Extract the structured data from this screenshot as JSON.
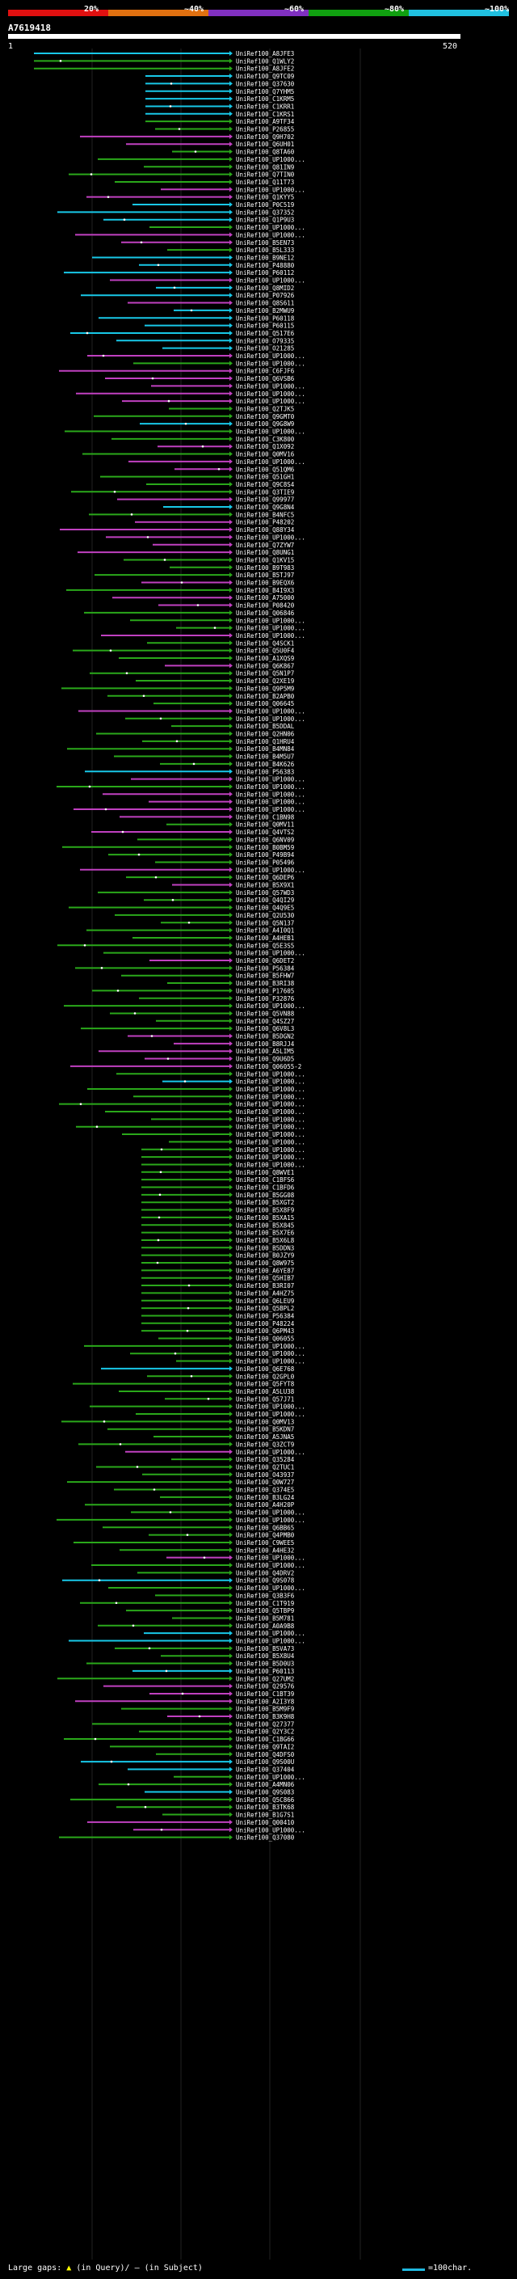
{
  "legend": {
    "labels": [
      "20%",
      "~40%",
      "~60%",
      "~80%",
      "~100%"
    ],
    "colors": [
      "#e01010",
      "#e07010",
      "#8030c0",
      "#10a010",
      "#20c0e0"
    ]
  },
  "query": {
    "id": "A7619418",
    "start": "1",
    "end": "520"
  },
  "colors": {
    "cyan": "#18c8e8",
    "green": "#2aa81a",
    "magenta": "#c040c0",
    "white": "#ffffff"
  },
  "hits": [
    {
      "id": "UniRef100_A8JFE3",
      "c": "cyan"
    },
    {
      "id": "UniRef100_Q1WLY2",
      "c": "green"
    },
    {
      "id": "UniRef100_A8JFE2",
      "c": "green"
    },
    {
      "id": "UniRef100_Q9TC09",
      "c": "cyan"
    },
    {
      "id": "UniRef100_Q37630",
      "c": "cyan"
    },
    {
      "id": "UniRef100_Q7YHM5",
      "c": "cyan"
    },
    {
      "id": "UniRef100_C1KRM5",
      "c": "cyan"
    },
    {
      "id": "UniRef100_C1KRR1",
      "c": "cyan"
    },
    {
      "id": "UniRef100_C1KRS1",
      "c": "cyan"
    },
    {
      "id": "UniRef100_A9TF34",
      "c": "green"
    },
    {
      "id": "UniRef100_P26855",
      "c": "green"
    },
    {
      "id": "UniRef100_Q9H702",
      "c": "magenta"
    },
    {
      "id": "UniRef100_Q6UH01",
      "c": "magenta"
    },
    {
      "id": "UniRef100_Q8TA60",
      "c": "green"
    },
    {
      "id": "UniRef100_UP1000...",
      "c": "green"
    },
    {
      "id": "UniRef100_Q81IN9",
      "c": "green"
    },
    {
      "id": "UniRef100_Q7TIN0",
      "c": "green"
    },
    {
      "id": "UniRef100_Q11T73",
      "c": "green"
    },
    {
      "id": "UniRef100_UP1000...",
      "c": "magenta"
    },
    {
      "id": "UniRef100_Q1KYY5",
      "c": "magenta"
    },
    {
      "id": "UniRef100_P0C519",
      "c": "cyan"
    },
    {
      "id": "UniRef100_Q37352",
      "c": "cyan"
    },
    {
      "id": "UniRef100_Q1P9U3",
      "c": "cyan"
    },
    {
      "id": "UniRef100_UP1000...",
      "c": "green"
    },
    {
      "id": "UniRef100_UP1000...",
      "c": "magenta"
    },
    {
      "id": "UniRef100_B5EN73",
      "c": "magenta"
    },
    {
      "id": "UniRef100_B5L333",
      "c": "green"
    },
    {
      "id": "UniRef100_B9NE12",
      "c": "cyan"
    },
    {
      "id": "UniRef100_P48880",
      "c": "cyan"
    },
    {
      "id": "UniRef100_P60112",
      "c": "cyan"
    },
    {
      "id": "UniRef100_UP1000...",
      "c": "magenta"
    },
    {
      "id": "UniRef100_Q8MID2",
      "c": "cyan"
    },
    {
      "id": "UniRef100_P07926",
      "c": "cyan"
    },
    {
      "id": "UniRef100_Q8S611",
      "c": "magenta"
    },
    {
      "id": "UniRef100_B2MWU9",
      "c": "cyan"
    },
    {
      "id": "UniRef100_P60118",
      "c": "cyan"
    },
    {
      "id": "UniRef100_P60115",
      "c": "cyan"
    },
    {
      "id": "UniRef100_Q517E6",
      "c": "cyan"
    },
    {
      "id": "UniRef100_O79335",
      "c": "cyan"
    },
    {
      "id": "UniRef100_O21285",
      "c": "cyan"
    },
    {
      "id": "UniRef100_UP1000...",
      "c": "magenta"
    },
    {
      "id": "UniRef100_UP1000...",
      "c": "green"
    },
    {
      "id": "UniRef100_C6FJF6",
      "c": "magenta"
    },
    {
      "id": "UniRef100_Q6VSB6",
      "c": "magenta"
    },
    {
      "id": "UniRef100_UP1000...",
      "c": "magenta"
    },
    {
      "id": "UniRef100_UP1000...",
      "c": "magenta"
    },
    {
      "id": "UniRef100_UP1000...",
      "c": "magenta"
    },
    {
      "id": "UniRef100_Q2TJK5",
      "c": "green"
    },
    {
      "id": "UniRef100_Q9GMT0",
      "c": "green"
    },
    {
      "id": "UniRef100_Q9G8W9",
      "c": "cyan"
    },
    {
      "id": "UniRef100_UP1000...",
      "c": "green"
    },
    {
      "id": "UniRef100_C3K800",
      "c": "green"
    },
    {
      "id": "UniRef100_Q1X092",
      "c": "magenta"
    },
    {
      "id": "UniRef100_Q0MV16",
      "c": "green"
    },
    {
      "id": "UniRef100_UP1000...",
      "c": "magenta"
    },
    {
      "id": "UniRef100_Q51QM6",
      "c": "magenta"
    },
    {
      "id": "UniRef100_Q51GH1",
      "c": "green"
    },
    {
      "id": "UniRef100_Q9C8S4",
      "c": "green"
    },
    {
      "id": "UniRef100_Q3TIE9",
      "c": "green"
    },
    {
      "id": "UniRef100_Q99977",
      "c": "magenta"
    },
    {
      "id": "UniRef100_Q9G8N4",
      "c": "cyan"
    },
    {
      "id": "UniRef100_B4NFC5",
      "c": "green"
    },
    {
      "id": "UniRef100_P48202",
      "c": "magenta"
    },
    {
      "id": "UniRef100_Q88Y34",
      "c": "magenta"
    },
    {
      "id": "UniRef100_UP1000...",
      "c": "magenta"
    },
    {
      "id": "UniRef100_Q7ZYW7",
      "c": "magenta"
    },
    {
      "id": "UniRef100_Q8UNG1",
      "c": "magenta"
    },
    {
      "id": "UniRef100_Q1KV15",
      "c": "green"
    },
    {
      "id": "UniRef100_B9T983",
      "c": "green"
    },
    {
      "id": "UniRef100_B5TJ97",
      "c": "green"
    },
    {
      "id": "UniRef100_B9EQX6",
      "c": "magenta"
    },
    {
      "id": "UniRef100_B4I9X3",
      "c": "green"
    },
    {
      "id": "UniRef100_A75000",
      "c": "magenta"
    },
    {
      "id": "UniRef100_P08420",
      "c": "magenta"
    },
    {
      "id": "UniRef100_Q06846",
      "c": "green"
    },
    {
      "id": "UniRef100_UP1000...",
      "c": "green"
    },
    {
      "id": "UniRef100_UP1000...",
      "c": "green"
    },
    {
      "id": "UniRef100_UP1000...",
      "c": "magenta"
    },
    {
      "id": "UniRef100_Q4SCK1",
      "c": "green"
    },
    {
      "id": "UniRef100_Q5U0F4",
      "c": "green"
    },
    {
      "id": "UniRef100_A1XQS9",
      "c": "green"
    },
    {
      "id": "UniRef100_Q6K867",
      "c": "magenta"
    },
    {
      "id": "UniRef100_Q5N1P7",
      "c": "green"
    },
    {
      "id": "UniRef100_Q2XE19",
      "c": "green"
    },
    {
      "id": "UniRef100_Q9P5M9",
      "c": "green"
    },
    {
      "id": "UniRef100_B2APB0",
      "c": "green"
    },
    {
      "id": "UniRef100_Q06645",
      "c": "green"
    },
    {
      "id": "UniRef100_UP1000...",
      "c": "magenta"
    },
    {
      "id": "UniRef100_UP1000...",
      "c": "green"
    },
    {
      "id": "UniRef100_B5DDAL",
      "c": "green"
    },
    {
      "id": "UniRef100_Q2HN06",
      "c": "green"
    },
    {
      "id": "UniRef100_Q1HRU4",
      "c": "green"
    },
    {
      "id": "UniRef100_B4MN84",
      "c": "green"
    },
    {
      "id": "UniRef100_B4M5U7",
      "c": "green"
    },
    {
      "id": "UniRef100_B4K626",
      "c": "green"
    },
    {
      "id": "UniRef100_P56383",
      "c": "cyan"
    },
    {
      "id": "UniRef100_UP1000...",
      "c": "magenta"
    },
    {
      "id": "UniRef100_UP1000...",
      "c": "green"
    },
    {
      "id": "UniRef100_UP1000...",
      "c": "magenta"
    },
    {
      "id": "UniRef100_UP1000...",
      "c": "magenta"
    },
    {
      "id": "UniRef100_UP1000...",
      "c": "magenta"
    },
    {
      "id": "UniRef100_C1BN98",
      "c": "magenta"
    },
    {
      "id": "UniRef100_Q0MV11",
      "c": "green"
    },
    {
      "id": "UniRef100_Q4VTS2",
      "c": "magenta"
    },
    {
      "id": "UniRef100_Q6NV09",
      "c": "green"
    },
    {
      "id": "UniRef100_B0BM59",
      "c": "green"
    },
    {
      "id": "UniRef100_P49B94",
      "c": "green"
    },
    {
      "id": "UniRef100_P05496",
      "c": "green"
    },
    {
      "id": "UniRef100_UP1000...",
      "c": "magenta"
    },
    {
      "id": "UniRef100_Q6DEP6",
      "c": "green"
    },
    {
      "id": "UniRef100_B5X9X1",
      "c": "magenta"
    },
    {
      "id": "UniRef100_Q57WD3",
      "c": "green"
    },
    {
      "id": "UniRef100_Q4QI29",
      "c": "green"
    },
    {
      "id": "UniRef100_Q4Q9E5",
      "c": "green"
    },
    {
      "id": "UniRef100_Q2U530",
      "c": "green"
    },
    {
      "id": "UniRef100_Q5N137",
      "c": "green"
    },
    {
      "id": "UniRef100_A4I0Q1",
      "c": "green"
    },
    {
      "id": "UniRef100_A4HEB1",
      "c": "green"
    },
    {
      "id": "UniRef100_Q5E3S5",
      "c": "green"
    },
    {
      "id": "UniRef100_UP1000...",
      "c": "green"
    },
    {
      "id": "UniRef100_Q6DET2",
      "c": "magenta"
    },
    {
      "id": "UniRef100_P56384",
      "c": "green"
    },
    {
      "id": "UniRef100_B5FHW7",
      "c": "green"
    },
    {
      "id": "UniRef100_B3RI38",
      "c": "green"
    },
    {
      "id": "UniRef100_P17605",
      "c": "green"
    },
    {
      "id": "UniRef100_P32876",
      "c": "green"
    },
    {
      "id": "UniRef100_UP1000...",
      "c": "green"
    },
    {
      "id": "UniRef100_Q5VN88",
      "c": "green"
    },
    {
      "id": "UniRef100_Q4SZ27",
      "c": "green"
    },
    {
      "id": "UniRef100_Q6V8L3",
      "c": "green"
    },
    {
      "id": "UniRef100_B5DGN2",
      "c": "magenta"
    },
    {
      "id": "UniRef100_B8RJJ4",
      "c": "magenta"
    },
    {
      "id": "UniRef100_A5LIM5",
      "c": "magenta"
    },
    {
      "id": "UniRef100_Q9U6D5",
      "c": "magenta"
    },
    {
      "id": "UniRef100_Q06055-2",
      "c": "magenta"
    },
    {
      "id": "UniRef100_UP1000...",
      "c": "green"
    },
    {
      "id": "UniRef100_UP1000...",
      "c": "cyan"
    },
    {
      "id": "UniRef100_UP1000...",
      "c": "green"
    },
    {
      "id": "UniRef100_UP1000...",
      "c": "green"
    },
    {
      "id": "UniRef100_UP1000...",
      "c": "green"
    },
    {
      "id": "UniRef100_UP1000...",
      "c": "green"
    },
    {
      "id": "UniRef100_UP1000...",
      "c": "green"
    },
    {
      "id": "UniRef100_UP1000...",
      "c": "green"
    },
    {
      "id": "UniRef100_UP1000...",
      "c": "green"
    },
    {
      "id": "UniRef100_UP1000...",
      "c": "green"
    },
    {
      "id": "UniRef100_UP1000...",
      "c": "green"
    },
    {
      "id": "UniRef100_UP1000...",
      "c": "green"
    },
    {
      "id": "UniRef100_UP1000...",
      "c": "green"
    },
    {
      "id": "UniRef100_Q8WVE1",
      "c": "green"
    },
    {
      "id": "UniRef100_C1BFS6",
      "c": "green"
    },
    {
      "id": "UniRef100_C1BFD6",
      "c": "green"
    },
    {
      "id": "UniRef100_B5GG08",
      "c": "green"
    },
    {
      "id": "UniRef100_B5XGT2",
      "c": "green"
    },
    {
      "id": "UniRef100_B5X8F9",
      "c": "green"
    },
    {
      "id": "UniRef100_B5XA15",
      "c": "green"
    },
    {
      "id": "UniRef100_B5X845",
      "c": "green"
    },
    {
      "id": "UniRef100_B5X7E6",
      "c": "green"
    },
    {
      "id": "UniRef100_B5X6L8",
      "c": "green"
    },
    {
      "id": "UniRef100_B5DDN3",
      "c": "green"
    },
    {
      "id": "UniRef100_B0JZY9",
      "c": "green"
    },
    {
      "id": "UniRef100_Q8W975",
      "c": "green"
    },
    {
      "id": "UniRef100_A6YE87",
      "c": "green"
    },
    {
      "id": "UniRef100_Q5HIB7",
      "c": "green"
    },
    {
      "id": "UniRef100_B3RI07",
      "c": "green"
    },
    {
      "id": "UniRef100_A4HZ75",
      "c": "green"
    },
    {
      "id": "UniRef100_Q6LEU9",
      "c": "green"
    },
    {
      "id": "UniRef100_Q5BPL2",
      "c": "green"
    },
    {
      "id": "UniRef100_P56384",
      "c": "green"
    },
    {
      "id": "UniRef100_P48224",
      "c": "green"
    },
    {
      "id": "UniRef100_Q6PM43",
      "c": "green"
    },
    {
      "id": "UniRef100_Q06055",
      "c": "green"
    },
    {
      "id": "UniRef100_UP1000...",
      "c": "green"
    },
    {
      "id": "UniRef100_UP1000...",
      "c": "green"
    },
    {
      "id": "UniRef100_UP1000...",
      "c": "green"
    },
    {
      "id": "UniRef100_Q6E768",
      "c": "cyan"
    },
    {
      "id": "UniRef100_Q2GPL0",
      "c": "green"
    },
    {
      "id": "UniRef100_Q5FYT8",
      "c": "green"
    },
    {
      "id": "UniRef100_A5LU38",
      "c": "green"
    },
    {
      "id": "UniRef100_Q57J71",
      "c": "green"
    },
    {
      "id": "UniRef100_UP1000...",
      "c": "green"
    },
    {
      "id": "UniRef100_UP1000...",
      "c": "green"
    },
    {
      "id": "UniRef100_Q0MV13",
      "c": "green"
    },
    {
      "id": "UniRef100_B5KDN7",
      "c": "green"
    },
    {
      "id": "UniRef100_A5JNA5",
      "c": "green"
    },
    {
      "id": "UniRef100_Q3ZCT9",
      "c": "green"
    },
    {
      "id": "UniRef100_UP1000...",
      "c": "magenta"
    },
    {
      "id": "UniRef100_Q35284",
      "c": "green"
    },
    {
      "id": "UniRef100_Q2TUC1",
      "c": "green"
    },
    {
      "id": "UniRef100_O43937",
      "c": "green"
    },
    {
      "id": "UniRef100_Q0W727",
      "c": "green"
    },
    {
      "id": "UniRef100_Q374E5",
      "c": "green"
    },
    {
      "id": "UniRef100_B3LG24",
      "c": "green"
    },
    {
      "id": "UniRef100_A4H20P",
      "c": "green"
    },
    {
      "id": "UniRef100_UP1000...",
      "c": "green"
    },
    {
      "id": "UniRef100_UP1000...",
      "c": "green"
    },
    {
      "id": "UniRef100_Q6BB65",
      "c": "green"
    },
    {
      "id": "UniRef100_Q4PMB0",
      "c": "green"
    },
    {
      "id": "UniRef100_C9WEE5",
      "c": "green"
    },
    {
      "id": "UniRef100_A4HE32",
      "c": "green"
    },
    {
      "id": "UniRef100_UP1000...",
      "c": "magenta"
    },
    {
      "id": "UniRef100_UP1000...",
      "c": "green"
    },
    {
      "id": "UniRef100_Q4DRV2",
      "c": "green"
    },
    {
      "id": "UniRef100_Q9S078",
      "c": "cyan"
    },
    {
      "id": "UniRef100_UP1000...",
      "c": "green"
    },
    {
      "id": "UniRef100_Q3B3F6",
      "c": "green"
    },
    {
      "id": "UniRef100_C1T919",
      "c": "green"
    },
    {
      "id": "UniRef100_Q5TBP9",
      "c": "green"
    },
    {
      "id": "UniRef100_B5M781",
      "c": "green"
    },
    {
      "id": "UniRef100_A0A9B8",
      "c": "green"
    },
    {
      "id": "UniRef100_UP1000...",
      "c": "cyan"
    },
    {
      "id": "UniRef100_UP1000...",
      "c": "cyan"
    },
    {
      "id": "UniRef100_B5VA73",
      "c": "green"
    },
    {
      "id": "UniRef100_B5X8U4",
      "c": "green"
    },
    {
      "id": "UniRef100_B5D0U3",
      "c": "green"
    },
    {
      "id": "UniRef100_P60113",
      "c": "cyan"
    },
    {
      "id": "UniRef100_Q27UM2",
      "c": "green"
    },
    {
      "id": "UniRef100_Q29576",
      "c": "magenta"
    },
    {
      "id": "UniRef100_C1BT39",
      "c": "magenta"
    },
    {
      "id": "UniRef100_A2I3Y8",
      "c": "magenta"
    },
    {
      "id": "UniRef100_B5M9F9",
      "c": "green"
    },
    {
      "id": "UniRef100_B3K9H8",
      "c": "magenta"
    },
    {
      "id": "UniRef100_Q27377",
      "c": "green"
    },
    {
      "id": "UniRef100_Q2Y3C2",
      "c": "green"
    },
    {
      "id": "UniRef100_C1BG66",
      "c": "green"
    },
    {
      "id": "UniRef100_Q9TAI2",
      "c": "green"
    },
    {
      "id": "UniRef100_Q4DFS0",
      "c": "green"
    },
    {
      "id": "UniRef100_Q9S00U",
      "c": "cyan"
    },
    {
      "id": "UniRef100_Q37404",
      "c": "cyan"
    },
    {
      "id": "UniRef100_UP1000...",
      "c": "green"
    },
    {
      "id": "UniRef100_A4MN06",
      "c": "green"
    },
    {
      "id": "UniRef100_Q9S083",
      "c": "cyan"
    },
    {
      "id": "UniRef100_Q5C866",
      "c": "green"
    },
    {
      "id": "UniRef100_B3TK68",
      "c": "green"
    },
    {
      "id": "UniRef100_B1G7S1",
      "c": "green"
    },
    {
      "id": "UniRef100_Q00410",
      "c": "magenta"
    },
    {
      "id": "UniRef100_UP1000...",
      "c": "magenta"
    },
    {
      "id": "UniRef100_Q37080",
      "c": "green"
    }
  ],
  "footer": {
    "large_gaps_label": "Large gaps:",
    "query_gap_text": "(in Query)",
    "subject_gap_text": "(in Subject)",
    "scale_text": "=100char."
  }
}
